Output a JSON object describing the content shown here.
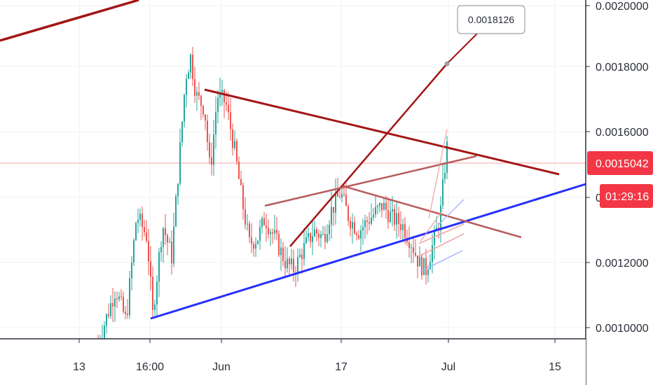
{
  "chart_data": {
    "type": "candlestick",
    "y_axis": {
      "ticks": [
        {
          "value": 0.001,
          "label": "0.0010000"
        },
        {
          "value": 0.0012,
          "label": "0.0012000"
        },
        {
          "value": 0.0016,
          "label": "0.0016000"
        },
        {
          "value": 0.0018,
          "label": "0.0018000"
        },
        {
          "value": 0.002,
          "label": "0.0020000"
        }
      ],
      "partial_label": "0",
      "partial_value": 0.0014
    },
    "x_axis": {
      "ticks": [
        {
          "date": "2019-05-13",
          "label": "13"
        },
        {
          "date": "2019-05-16",
          "label": "16:00"
        },
        {
          "date": "2019-06-01",
          "label": "Jun"
        },
        {
          "date": "2019-06-17",
          "label": "17"
        },
        {
          "date": "2019-07-01",
          "label": "Jul"
        },
        {
          "date": "2019-07-15",
          "label": "15"
        }
      ]
    },
    "current_price": {
      "value": 0.0015042,
      "label": "0.0015042",
      "color": "#f23645"
    },
    "countdown": {
      "label": "01:29:16",
      "color": "#f23645"
    },
    "callout": {
      "value": 0.0018126,
      "label": "0.0018126"
    },
    "colors": {
      "up": "#26a69a",
      "down": "#ef5350",
      "support": "#2430ff",
      "resistance": "#a31515",
      "channel": "#b85c5c"
    },
    "drawings": [
      {
        "name": "top-left-line",
        "color": "#a31515"
      },
      {
        "name": "descending-resistance",
        "color": "#a31515"
      },
      {
        "name": "ascending-support",
        "color": "#2430ff"
      },
      {
        "name": "target-line",
        "color": "#a31515"
      },
      {
        "name": "channel-upper",
        "color": "#b85c5c"
      },
      {
        "name": "channel-lower",
        "color": "#b85c5c"
      }
    ]
  }
}
